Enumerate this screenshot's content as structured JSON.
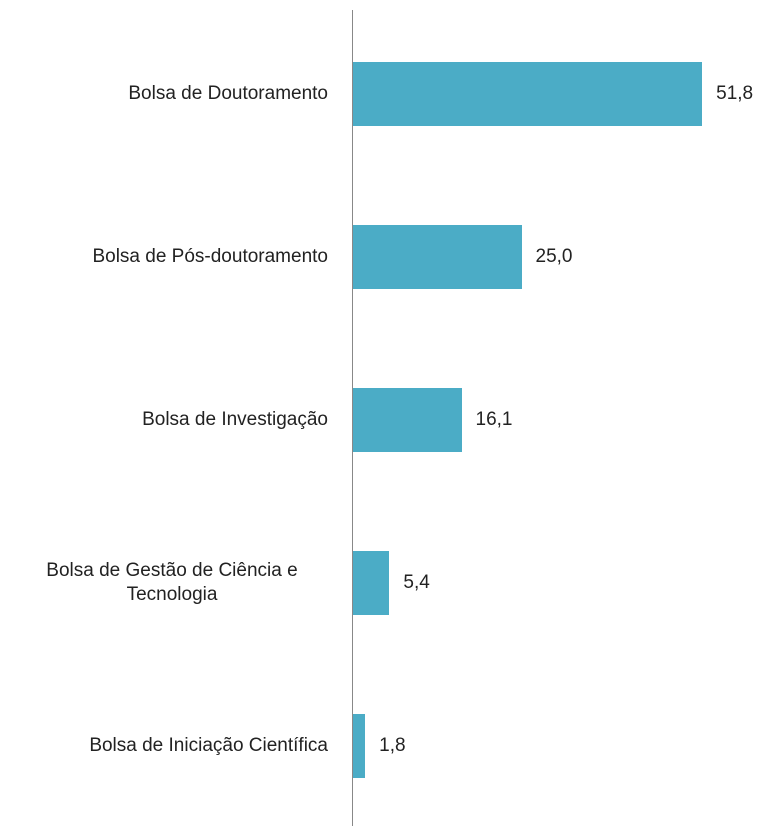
{
  "chart_data": {
    "type": "bar",
    "orientation": "horizontal",
    "categories": [
      "Bolsa de Doutoramento",
      "Bolsa de Pós-doutoramento",
      "Bolsa de Investigação",
      "Bolsa de Gestão de Ciência e Tecnologia",
      "Bolsa de Iniciação Científica"
    ],
    "values": [
      51.8,
      25.0,
      16.1,
      5.4,
      1.8
    ],
    "value_labels": [
      "51,8",
      "25,0",
      "16,1",
      "5,4",
      "1,8"
    ],
    "color": "#4bacc6"
  }
}
